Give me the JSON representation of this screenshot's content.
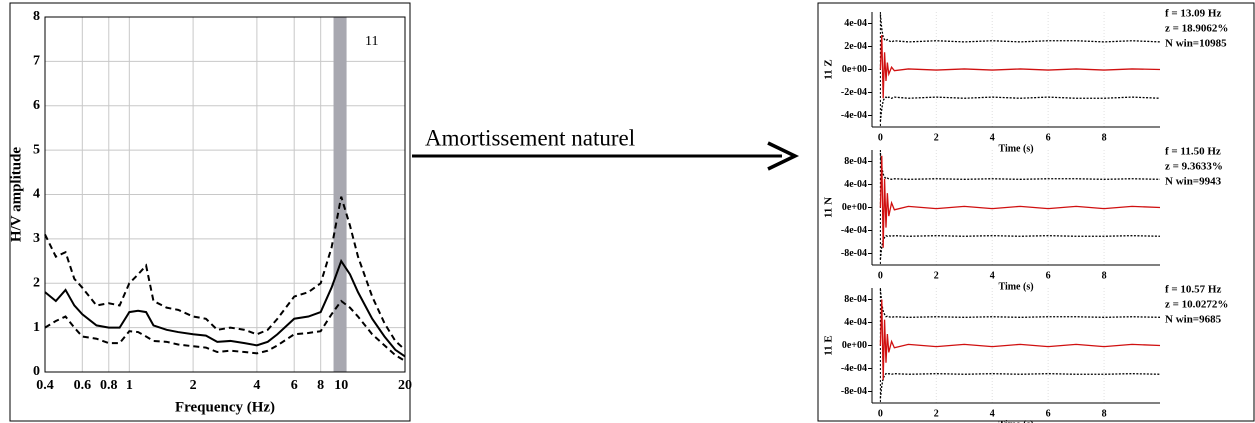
{
  "annotation": "Amortissement naturel",
  "chart_data": [
    {
      "type": "line",
      "label": "11",
      "xlabel": "Frequency (Hz)",
      "ylabel": "H/V amplitude",
      "xscale": "log",
      "grid": true,
      "xlim": [
        0.4,
        20
      ],
      "xticks": [
        0.4,
        0.6,
        0.8,
        1,
        2,
        4,
        6,
        8,
        10,
        20
      ],
      "ylim": [
        0,
        8
      ],
      "yticks": [
        0,
        1,
        2,
        3,
        4,
        5,
        6,
        7,
        8
      ],
      "highlight_band": [
        9.2,
        10.6
      ],
      "band_color": "#a8a8b0",
      "x": [
        0.4,
        0.45,
        0.5,
        0.55,
        0.6,
        0.7,
        0.8,
        0.9,
        1.0,
        1.1,
        1.2,
        1.3,
        1.5,
        1.7,
        2,
        2.3,
        2.6,
        3,
        3.5,
        4,
        4.5,
        5,
        6,
        7,
        8,
        9,
        10,
        11,
        12,
        14,
        16,
        18,
        20
      ],
      "series": [
        {
          "color": "#000000",
          "dash": false,
          "values": [
            1.8,
            1.6,
            1.85,
            1.5,
            1.3,
            1.05,
            1.0,
            1.0,
            1.35,
            1.38,
            1.35,
            1.05,
            0.95,
            0.9,
            0.85,
            0.82,
            0.68,
            0.7,
            0.65,
            0.6,
            0.68,
            0.85,
            1.2,
            1.25,
            1.35,
            1.9,
            2.5,
            2.2,
            1.8,
            1.2,
            0.8,
            0.5,
            0.35
          ]
        },
        {
          "color": "#000000",
          "dash": true,
          "values": [
            3.1,
            2.6,
            2.7,
            2.1,
            1.9,
            1.5,
            1.55,
            1.5,
            2.0,
            2.2,
            2.4,
            1.6,
            1.45,
            1.4,
            1.25,
            1.2,
            0.95,
            1.0,
            0.95,
            0.85,
            0.95,
            1.2,
            1.7,
            1.8,
            2.0,
            2.8,
            3.95,
            3.3,
            2.6,
            1.7,
            1.1,
            0.7,
            0.5
          ]
        },
        {
          "color": "#000000",
          "dash": true,
          "values": [
            1.0,
            1.15,
            1.25,
            1.0,
            0.8,
            0.75,
            0.65,
            0.65,
            0.92,
            0.9,
            0.8,
            0.7,
            0.68,
            0.62,
            0.58,
            0.55,
            0.45,
            0.48,
            0.45,
            0.42,
            0.48,
            0.6,
            0.85,
            0.88,
            0.92,
            1.3,
            1.6,
            1.45,
            1.25,
            0.85,
            0.6,
            0.38,
            0.25
          ]
        }
      ]
    },
    {
      "type": "line",
      "ylabel": "11 Z",
      "xlabel": "Time (s)",
      "info": [
        "f = 13.09 Hz",
        "z = 18.9062%",
        "N win=10985"
      ],
      "xlim": [
        -0.3,
        10
      ],
      "xticks": [
        0,
        2,
        4,
        6,
        8
      ],
      "ylim": [
        -0.0005,
        0.0005
      ],
      "yticks": [
        {
          "value": -0.0004,
          "label": "-4e-04"
        },
        {
          "value": -0.0002,
          "label": "-2e-04"
        },
        {
          "value": 0,
          "label": "0e+00"
        },
        {
          "value": 0.0002,
          "label": "2e-04"
        },
        {
          "value": 0.0004,
          "label": "4e-04"
        }
      ],
      "x": [
        0,
        0.05,
        0.1,
        0.15,
        0.2,
        0.25,
        0.3,
        0.4,
        0.5,
        1,
        2,
        3,
        4,
        5,
        6,
        7,
        8,
        9,
        10
      ],
      "series": [
        {
          "color": "#000000",
          "dash": true,
          "values": [
            0.00048,
            0.00035,
            0.00028,
            0.00026,
            0.00025,
            0.00026,
            0.00025,
            0.00024,
            0.00025,
            0.00024,
            0.00025,
            0.00024,
            0.00025,
            0.00024,
            0.00025,
            0.00025,
            0.00024,
            0.00025,
            0.00024
          ]
        },
        {
          "color": "#000000",
          "dash": true,
          "values": [
            -0.00045,
            -0.00034,
            -0.00027,
            -0.00025,
            -0.00024,
            -0.00025,
            -0.00024,
            -0.00025,
            -0.00024,
            -0.00025,
            -0.00024,
            -0.00025,
            -0.00024,
            -0.00025,
            -0.00024,
            -0.00025,
            -0.00025,
            -0.00024,
            -0.00025
          ]
        },
        {
          "color": "#d01010",
          "dash": false,
          "values": [
            0,
            0.0003,
            -0.00025,
            0.00015,
            -0.0001,
            6e-05,
            -4e-05,
            2e-05,
            -1e-05,
            5e-06,
            -5e-06,
            5e-06,
            -5e-06,
            5e-06,
            -5e-06,
            5e-06,
            -5e-06,
            5e-06,
            0
          ]
        }
      ]
    },
    {
      "type": "line",
      "ylabel": "11 N",
      "xlabel": "Time (s)",
      "info": [
        "f = 11.50 Hz",
        "z = 9.3633%",
        "N win=9943"
      ],
      "xlim": [
        -0.3,
        10
      ],
      "xticks": [
        0,
        2,
        4,
        6,
        8
      ],
      "ylim": [
        -0.001,
        0.001
      ],
      "yticks": [
        {
          "value": -0.0008,
          "label": "-8e-04"
        },
        {
          "value": -0.0004,
          "label": "-4e-04"
        },
        {
          "value": 0,
          "label": "0e+00"
        },
        {
          "value": 0.0004,
          "label": "4e-04"
        },
        {
          "value": 0.0008,
          "label": "8e-04"
        }
      ],
      "x": [
        0,
        0.05,
        0.1,
        0.15,
        0.2,
        0.25,
        0.3,
        0.4,
        0.5,
        1,
        2,
        3,
        4,
        5,
        6,
        7,
        8,
        9,
        10
      ],
      "series": [
        {
          "color": "#000000",
          "dash": true,
          "values": [
            0.00095,
            0.0007,
            0.00058,
            0.00053,
            0.0005,
            0.00051,
            0.0005,
            0.00049,
            0.0005,
            0.00049,
            0.0005,
            0.00049,
            0.0005,
            0.00049,
            0.0005,
            0.0005,
            0.00049,
            0.0005,
            0.00049
          ]
        },
        {
          "color": "#000000",
          "dash": true,
          "values": [
            -0.0009,
            -0.00068,
            -0.00056,
            -0.00052,
            -0.00049,
            -0.0005,
            -0.00049,
            -0.0005,
            -0.00049,
            -0.0005,
            -0.00049,
            -0.0005,
            -0.00049,
            -0.0005,
            -0.00049,
            -0.0005,
            -0.0005,
            -0.00049,
            -0.0005
          ]
        },
        {
          "color": "#d01010",
          "dash": false,
          "values": [
            0,
            0.0009,
            -0.0007,
            0.0005,
            -0.00035,
            0.00025,
            -0.00015,
            8e-05,
            -4e-05,
            2e-05,
            -2e-05,
            2e-05,
            -2e-05,
            2e-05,
            -2e-05,
            2e-05,
            -2e-05,
            2e-05,
            0
          ]
        }
      ]
    },
    {
      "type": "line",
      "ylabel": "11 E",
      "xlabel": "Time (s)",
      "info": [
        "f = 10.57 Hz",
        "z = 10.0272%",
        "N win=9685"
      ],
      "xlim": [
        -0.3,
        10
      ],
      "xticks": [
        0,
        2,
        4,
        6,
        8
      ],
      "ylim": [
        -0.001,
        0.001
      ],
      "yticks": [
        {
          "value": -0.0008,
          "label": "-8e-04"
        },
        {
          "value": -0.0004,
          "label": "-4e-04"
        },
        {
          "value": 0,
          "label": "0e+00"
        },
        {
          "value": 0.0004,
          "label": "4e-04"
        },
        {
          "value": 0.0008,
          "label": "8e-04"
        }
      ],
      "x": [
        0,
        0.05,
        0.1,
        0.15,
        0.2,
        0.25,
        0.3,
        0.4,
        0.5,
        1,
        2,
        3,
        4,
        5,
        6,
        7,
        8,
        9,
        10
      ],
      "series": [
        {
          "color": "#000000",
          "dash": true,
          "values": [
            0.00098,
            0.00072,
            0.0006,
            0.00054,
            0.0005,
            0.00051,
            0.0005,
            0.00049,
            0.0005,
            0.00049,
            0.0005,
            0.00049,
            0.0005,
            0.00049,
            0.0005,
            0.0005,
            0.00049,
            0.0005,
            0.00049
          ]
        },
        {
          "color": "#000000",
          "dash": true,
          "values": [
            -0.00092,
            -0.0007,
            -0.00057,
            -0.00052,
            -0.00049,
            -0.0005,
            -0.00049,
            -0.0005,
            -0.00049,
            -0.0005,
            -0.00049,
            -0.0005,
            -0.00049,
            -0.0005,
            -0.00049,
            -0.0005,
            -0.0005,
            -0.00049,
            -0.0005
          ]
        },
        {
          "color": "#d01010",
          "dash": false,
          "values": [
            0,
            0.0008,
            -0.0006,
            0.00045,
            -0.0003,
            0.0002,
            -0.00012,
            7e-05,
            -4e-05,
            2e-05,
            -2e-05,
            2e-05,
            -2e-05,
            2e-05,
            -2e-05,
            2e-05,
            -2e-05,
            2e-05,
            0
          ]
        }
      ]
    }
  ]
}
